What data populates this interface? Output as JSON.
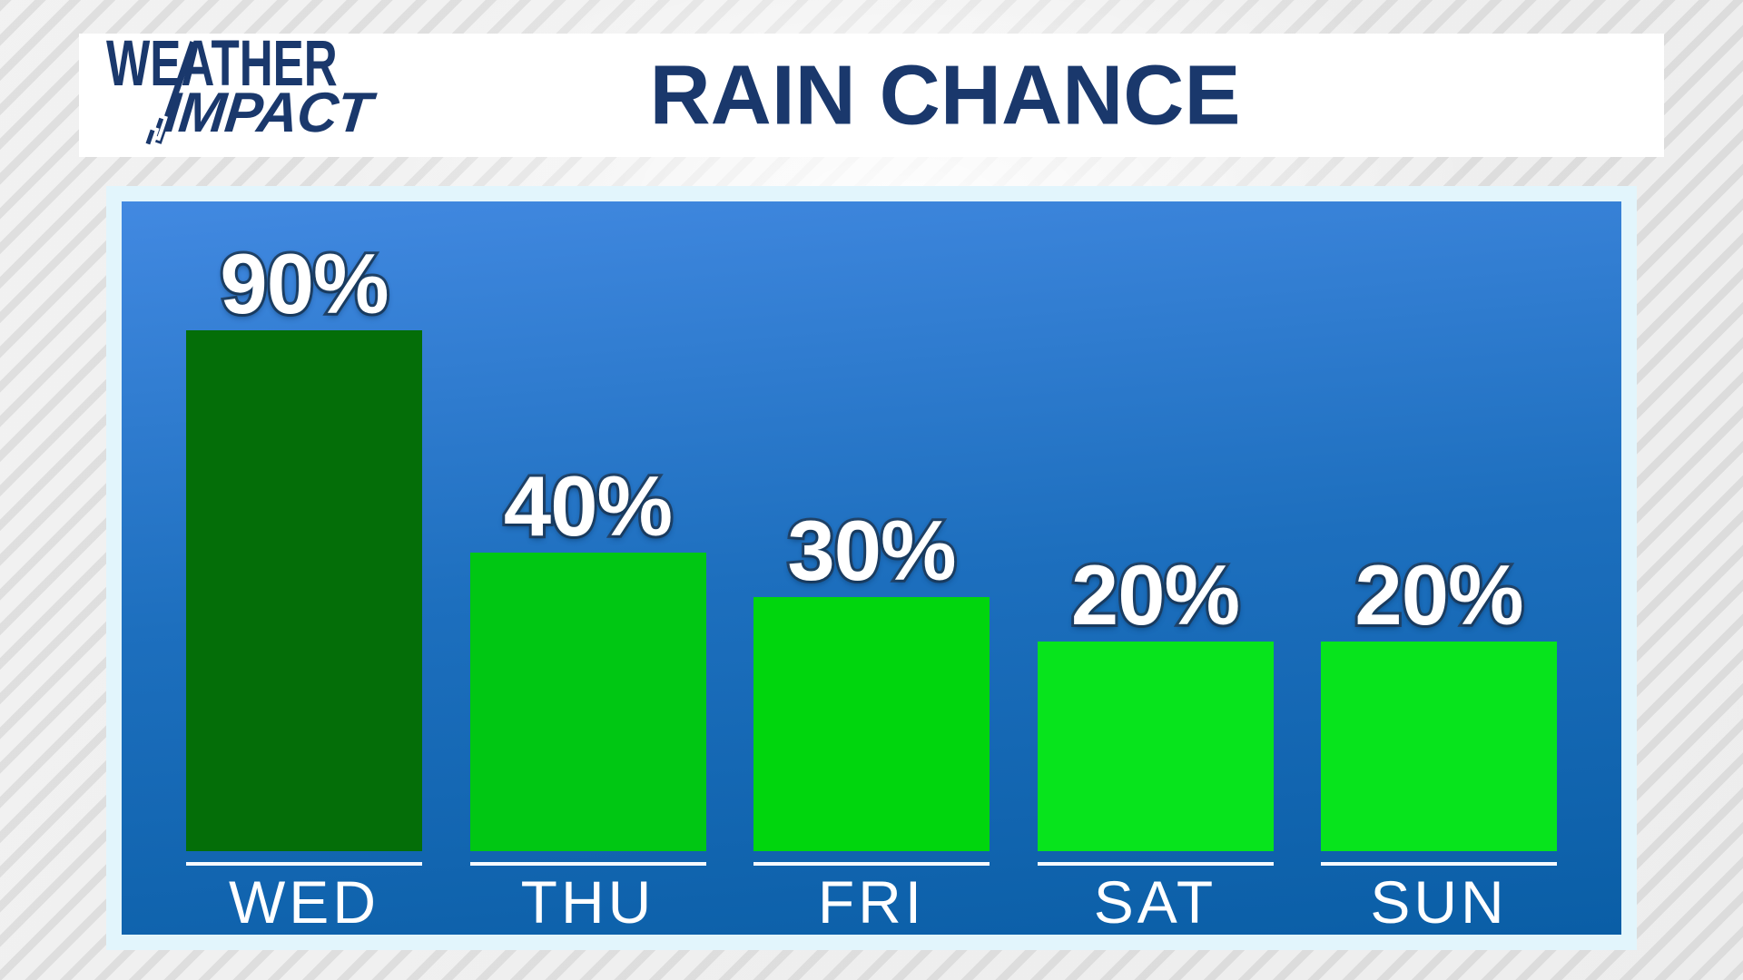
{
  "brand": {
    "line1": "WEATHER",
    "line2": "IMPACT"
  },
  "header": {
    "title": "RAIN CHANCE"
  },
  "chart_data": {
    "type": "bar",
    "title": "RAIN CHANCE",
    "categories": [
      "WED",
      "THU",
      "FRI",
      "SAT",
      "SUN"
    ],
    "values": [
      90,
      40,
      30,
      20,
      20
    ],
    "unit": "%",
    "ylim": [
      0,
      100
    ],
    "grid": false,
    "legend": false,
    "bar_colors": [
      "#046e08",
      "#00c713",
      "#00d60d",
      "#07e41c",
      "#07e41c"
    ],
    "plot_background_gradient": [
      "#4289e1",
      "#1d6fbe",
      "#0a5ea6"
    ]
  },
  "colors": {
    "brand_navy": "#1a386c",
    "panel_border": "#e2f5fc",
    "value_label_fill": "#ffffff",
    "value_label_outline": "#23456a",
    "baseline_white": "#f6fbff",
    "day_label_white": "#ffffff"
  }
}
